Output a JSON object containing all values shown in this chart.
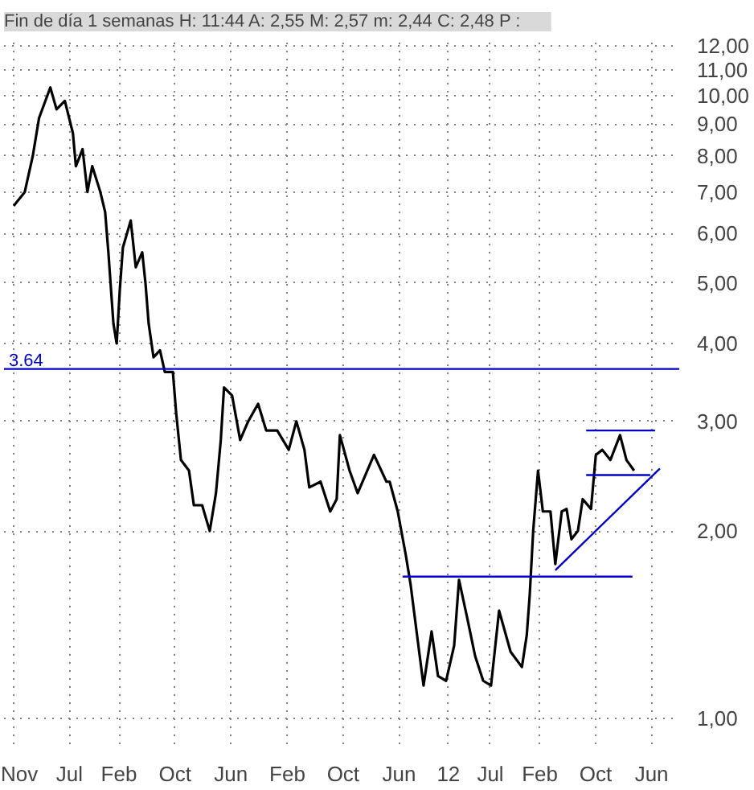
{
  "chart_data": {
    "type": "line",
    "title": "Fin de día 1 semanas  H: 11:44  A: 2,55  M: 2,57  m: 2,44  C: 2,48  P :",
    "log": "y",
    "grid": true,
    "marker": "none",
    "line_style": "solid",
    "xlim": [
      "2006-09-20",
      "2014-09-29"
    ],
    "xticks": [
      {
        "value": "2006-11-01",
        "label": "Nov"
      },
      {
        "value": "2007-07-01",
        "label": "Jul"
      },
      {
        "value": "2008-02-01",
        "label": "Feb"
      },
      {
        "value": "2008-10-01",
        "label": "Oct"
      },
      {
        "value": "2009-06-01",
        "label": "Jun"
      },
      {
        "value": "2010-02-01",
        "label": "Feb"
      },
      {
        "value": "2010-10-01",
        "label": "Oct"
      },
      {
        "value": "2011-06-01",
        "label": "Jun"
      },
      {
        "value": "2012-01-01",
        "label": "12"
      },
      {
        "value": "2012-07-01",
        "label": "Jul"
      },
      {
        "value": "2013-02-01",
        "label": "Feb"
      },
      {
        "value": "2013-10-01",
        "label": "Oct"
      },
      {
        "value": "2014-06-01",
        "label": "Jun"
      }
    ],
    "ylim": [
      0.91,
      12.3
    ],
    "yticks": [
      {
        "value": 1,
        "label": "1,00"
      },
      {
        "value": 2,
        "label": "2,00"
      },
      {
        "value": 3,
        "label": "3,00"
      },
      {
        "value": 4,
        "label": "4,00"
      },
      {
        "value": 5,
        "label": "5,00"
      },
      {
        "value": 6,
        "label": "6,00"
      },
      {
        "value": 7,
        "label": "7,00"
      },
      {
        "value": 8,
        "label": "8,00"
      },
      {
        "value": 9,
        "label": "9,00"
      },
      {
        "value": 10,
        "label": "10,00"
      },
      {
        "value": 11,
        "label": "11,00"
      },
      {
        "value": 12,
        "label": "12,00"
      }
    ],
    "ref_lines": [
      {
        "axis": "y",
        "value": 3.64,
        "label": "3.64",
        "color": "#0000cc"
      }
    ],
    "series": [
      {
        "color": "#000000",
        "x": [
          "2006-11-01",
          "2006-12-19",
          "2007-01-23",
          "2007-02-19",
          "2007-04-09",
          "2007-05-06",
          "2007-06-11",
          "2007-07-16",
          "2007-07-29",
          "2007-08-27",
          "2007-09-17",
          "2007-10-08",
          "2007-11-12",
          "2007-12-03",
          "2007-12-17",
          "2008-01-08",
          "2008-01-22",
          "2008-02-05",
          "2008-02-18",
          "2008-03-23",
          "2008-04-14",
          "2008-05-12",
          "2008-05-26",
          "2008-06-09",
          "2008-06-30",
          "2008-07-28",
          "2008-08-18",
          "2008-09-22",
          "2008-10-06",
          "2008-10-27",
          "2008-12-01",
          "2008-12-22",
          "2009-01-27",
          "2009-03-01",
          "2009-03-28",
          "2009-04-18",
          "2009-05-02",
          "2009-06-06",
          "2009-07-11",
          "2009-08-15",
          "2009-09-27",
          "2009-11-01",
          "2009-12-19",
          "2010-02-07",
          "2010-03-12",
          "2010-04-16",
          "2010-05-07",
          "2010-06-25",
          "2010-08-06",
          "2010-09-03",
          "2010-09-17",
          "2010-10-29",
          "2010-12-03",
          "2011-02-12",
          "2011-04-07",
          "2011-04-21",
          "2011-05-26",
          "2011-06-30",
          "2011-07-21",
          "2011-08-18",
          "2011-09-15",
          "2011-10-20",
          "2011-11-17",
          "2011-12-22",
          "2012-01-26",
          "2012-02-16",
          "2012-03-21",
          "2012-04-26",
          "2012-05-31",
          "2012-07-04",
          "2012-08-08",
          "2012-09-27",
          "2012-11-15",
          "2012-12-06",
          "2012-12-19",
          "2013-01-03",
          "2013-01-24",
          "2013-02-14",
          "2013-03-19",
          "2013-04-09",
          "2013-05-07",
          "2013-05-28",
          "2013-06-18",
          "2013-07-16",
          "2013-08-06",
          "2013-09-11",
          "2013-10-02",
          "2013-10-30",
          "2013-12-04",
          "2014-01-15",
          "2014-02-12",
          "2014-03-17"
        ],
        "values": [
          6.65,
          7.0,
          8.0,
          9.2,
          10.3,
          9.5,
          9.8,
          8.7,
          7.7,
          8.2,
          7.0,
          7.7,
          7.0,
          6.5,
          5.6,
          4.3,
          4.0,
          4.9,
          5.7,
          6.3,
          5.3,
          5.6,
          5.0,
          4.3,
          3.8,
          3.9,
          3.6,
          3.6,
          3.1,
          2.6,
          2.5,
          2.2,
          2.2,
          2.0,
          2.3,
          2.8,
          3.4,
          3.3,
          2.8,
          3.0,
          3.2,
          2.9,
          2.9,
          2.7,
          3.0,
          2.7,
          2.35,
          2.4,
          2.15,
          2.25,
          2.85,
          2.5,
          2.3,
          2.65,
          2.4,
          2.4,
          2.15,
          1.83,
          1.64,
          1.36,
          1.13,
          1.38,
          1.17,
          1.15,
          1.31,
          1.67,
          1.46,
          1.26,
          1.15,
          1.13,
          1.49,
          1.28,
          1.21,
          1.36,
          1.58,
          2.0,
          2.5,
          2.15,
          2.15,
          1.77,
          2.15,
          2.17,
          1.94,
          2.0,
          2.25,
          2.17,
          2.65,
          2.7,
          2.6,
          2.85,
          2.6,
          2.5
        ]
      },
      {
        "color": "#0000cc",
        "x": [
          "2011-06-16",
          "2014-03-10"
        ],
        "values": [
          1.69,
          1.69
        ]
      },
      {
        "color": "#0000cc",
        "x": [
          "2013-04-09",
          "2014-07-07"
        ],
        "values": [
          1.73,
          2.52
        ]
      },
      {
        "color": "#0000cc",
        "x": [
          "2013-08-21",
          "2014-06-16"
        ],
        "values": [
          2.9,
          2.9
        ]
      },
      {
        "color": "#0000cc",
        "x": [
          "2013-08-21",
          "2014-05-26"
        ],
        "values": [
          2.46,
          2.46
        ]
      }
    ]
  }
}
